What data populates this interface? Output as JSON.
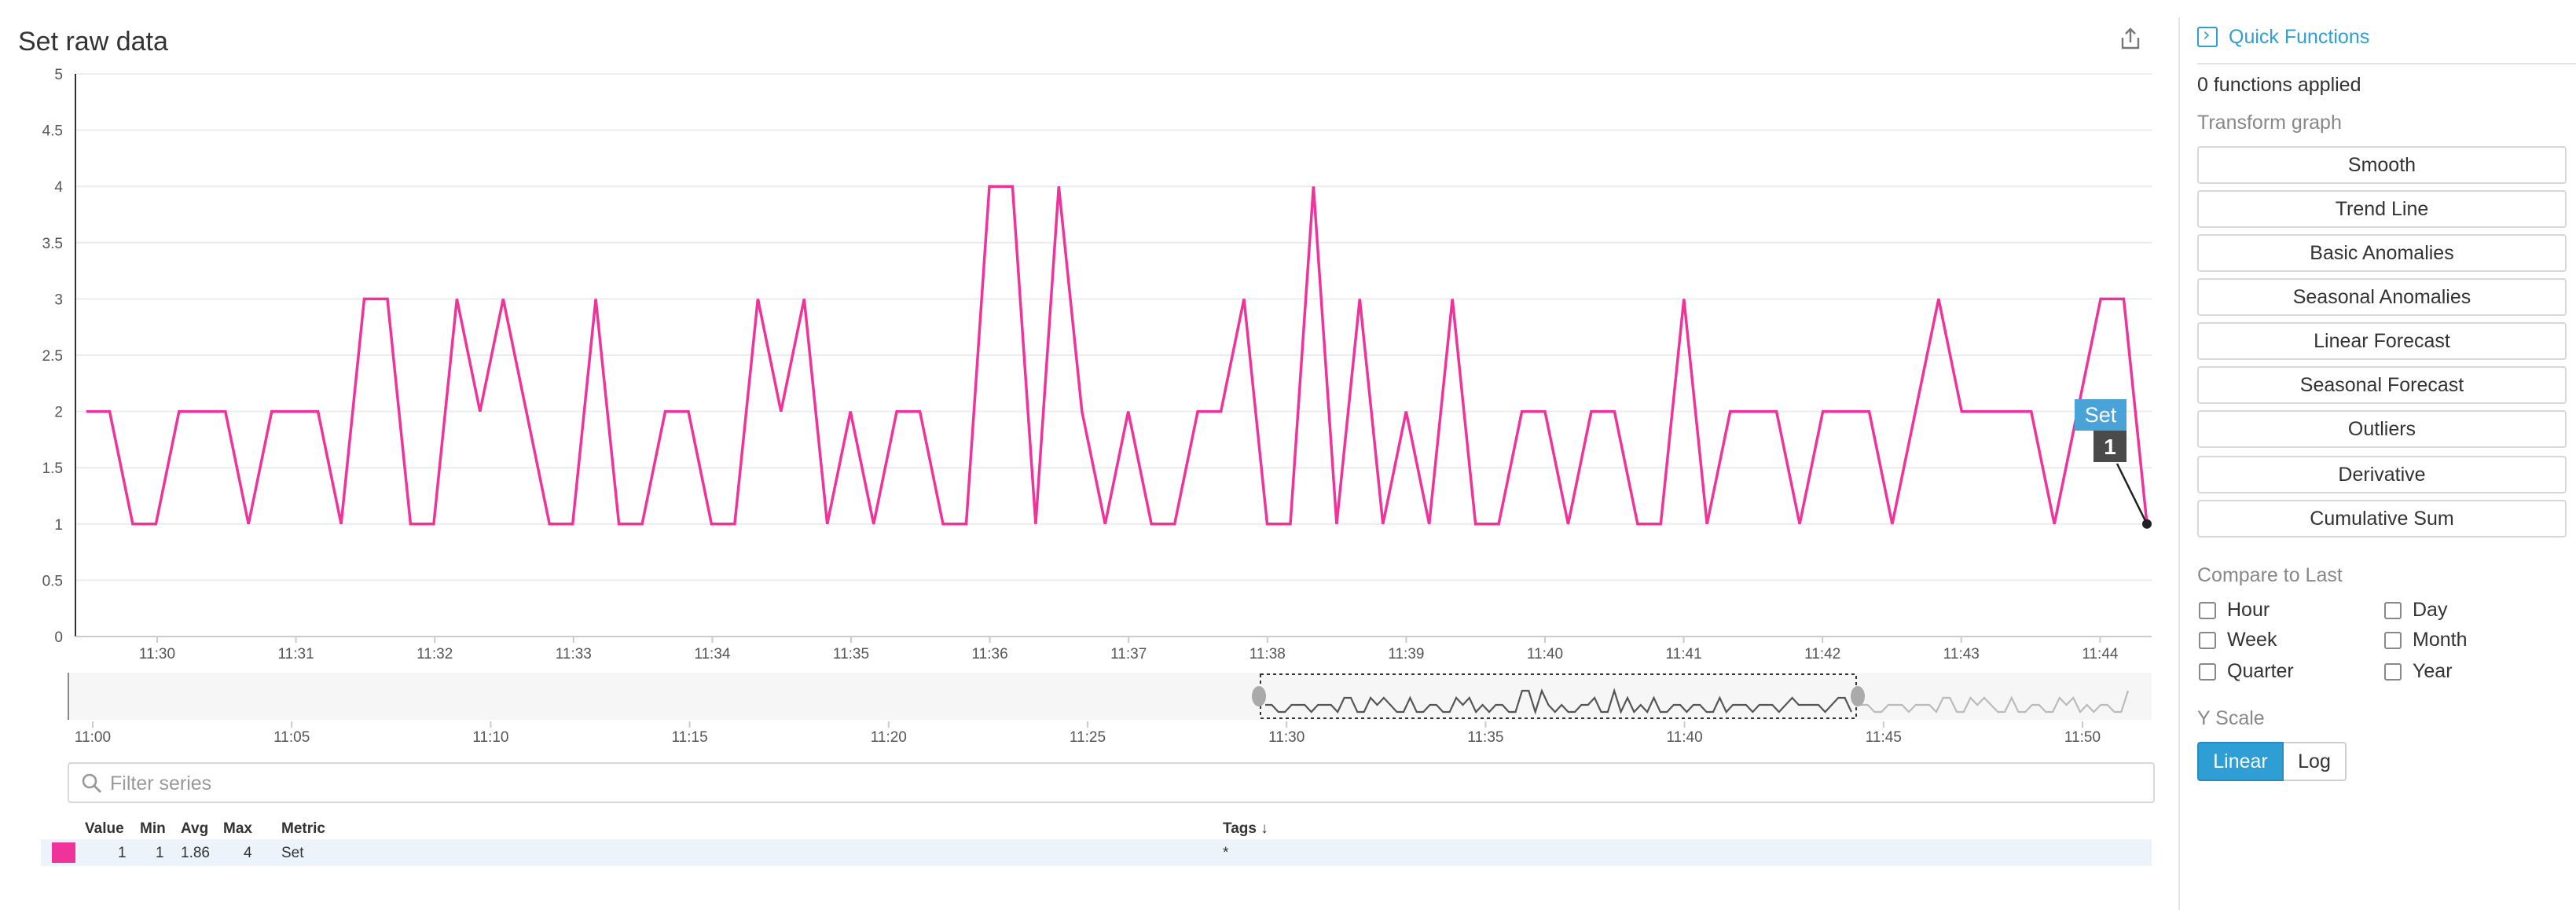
{
  "widget": {
    "title": "Set raw data"
  },
  "colors": {
    "series": "#f0339a",
    "accent": "#2e9ed4",
    "tooltip_label_bg": "#4aa3d8",
    "tooltip_value_bg": "#4a4a4a"
  },
  "chart_data": {
    "type": "line",
    "ylim": [
      0,
      5
    ],
    "y_ticks": [
      "0",
      "0.5",
      "1",
      "1.5",
      "2",
      "2.5",
      "3",
      "3.5",
      "4",
      "4.5",
      "5"
    ],
    "x_ticks": [
      "11:30",
      "11:31",
      "11:32",
      "11:33",
      "11:34",
      "11:35",
      "11:36",
      "11:37",
      "11:38",
      "11:39",
      "11:40",
      "11:41",
      "11:42",
      "11:43",
      "11:44"
    ],
    "series": [
      {
        "name": "Set",
        "values": [
          2,
          2,
          1,
          1,
          2,
          2,
          2,
          1,
          2,
          2,
          2,
          1,
          3,
          3,
          1,
          1,
          3,
          2,
          3,
          2,
          1,
          1,
          3,
          1,
          1,
          2,
          2,
          1,
          1,
          3,
          2,
          3,
          1,
          2,
          1,
          2,
          2,
          1,
          1,
          4,
          4,
          1,
          4,
          2,
          1,
          2,
          1,
          1,
          2,
          2,
          3,
          1,
          1,
          4,
          1,
          3,
          1,
          2,
          1,
          3,
          1,
          1,
          2,
          2,
          1,
          2,
          2,
          1,
          1,
          3,
          1,
          2,
          2,
          2,
          1,
          2,
          2,
          2,
          1,
          2,
          3,
          2,
          2,
          2,
          2,
          1,
          2,
          3,
          3,
          1
        ]
      }
    ],
    "tooltip": {
      "label": "Set",
      "value": "1"
    },
    "navigator": {
      "x_ticks": [
        "11:00",
        "11:05",
        "11:10",
        "11:15",
        "11:20",
        "11:25",
        "11:30",
        "11:35",
        "11:40",
        "11:45",
        "11:50"
      ]
    }
  },
  "filter": {
    "placeholder": "Filter series"
  },
  "legend": {
    "headers": {
      "value": "Value",
      "min": "Min",
      "avg": "Avg",
      "max": "Max",
      "metric": "Metric",
      "tags": "Tags ↓"
    },
    "rows": [
      {
        "value": "1",
        "min": "1",
        "avg": "1.86",
        "max": "4",
        "metric": "Set",
        "tags": "*"
      }
    ]
  },
  "sidebar": {
    "quick_functions": "Quick Functions",
    "functions_applied": "0 functions applied",
    "transform_label": "Transform graph",
    "transforms": [
      "Smooth",
      "Trend Line",
      "Basic Anomalies",
      "Seasonal Anomalies",
      "Linear Forecast",
      "Seasonal Forecast",
      "Outliers",
      "Derivative",
      "Cumulative Sum"
    ],
    "compare_label": "Compare to Last",
    "compare": [
      "Hour",
      "Day",
      "Week",
      "Month",
      "Quarter",
      "Year"
    ],
    "yscale_label": "Y Scale",
    "yscale_linear": "Linear",
    "yscale_log": "Log"
  }
}
